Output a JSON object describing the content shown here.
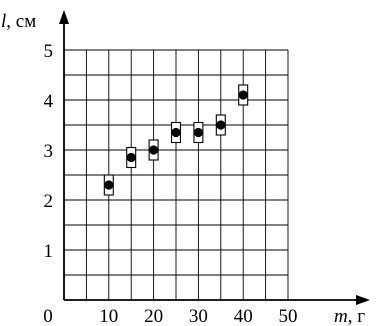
{
  "chart_data": {
    "type": "scatter",
    "xlabel_symbol": "m",
    "xlabel_unit": ", г",
    "ylabel_symbol": "l",
    "ylabel_unit": ", см",
    "xlim": [
      0,
      50
    ],
    "ylim": [
      0,
      5
    ],
    "x_ticks": [
      0,
      10,
      20,
      30,
      40,
      50
    ],
    "y_ticks": [
      1,
      2,
      3,
      4,
      5
    ],
    "grid": true,
    "grid_step_x": 5,
    "grid_step_y": 0.5,
    "error_bars": {
      "x_err": 1,
      "y_err": 0.2
    },
    "points": [
      {
        "x": 10,
        "y": 2.3
      },
      {
        "x": 15,
        "y": 2.85
      },
      {
        "x": 20,
        "y": 3.0
      },
      {
        "x": 25,
        "y": 3.35
      },
      {
        "x": 30,
        "y": 3.35
      },
      {
        "x": 35,
        "y": 3.5
      },
      {
        "x": 40,
        "y": 4.1
      }
    ],
    "colors": {
      "ink": "#000000",
      "grid": "#000000"
    }
  }
}
